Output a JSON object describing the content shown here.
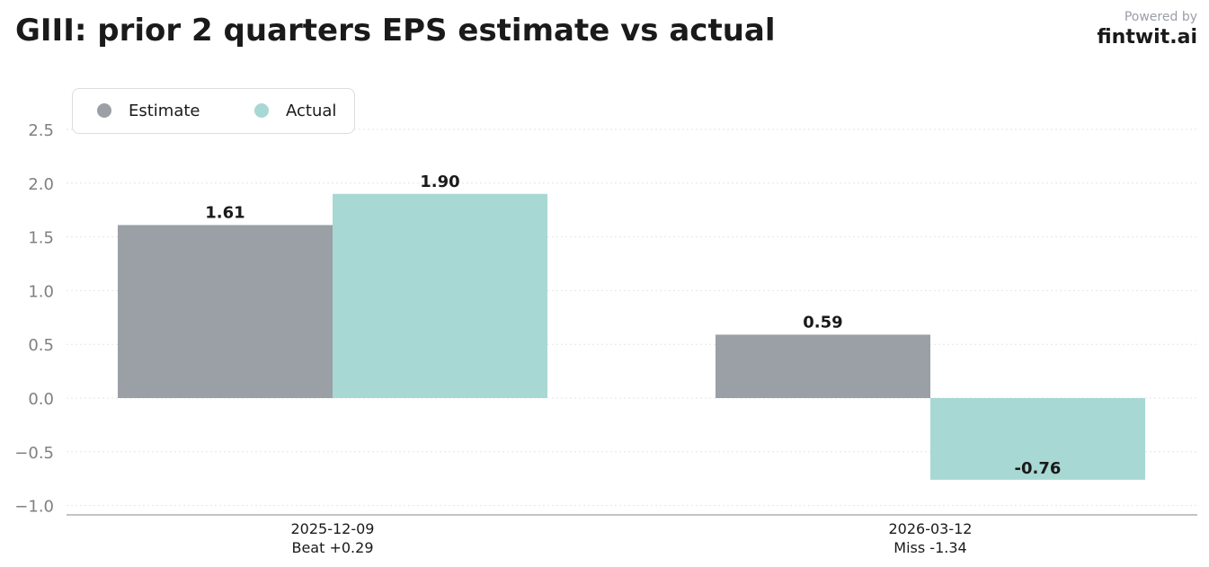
{
  "header": {
    "title": "GIII: prior 2 quarters EPS estimate vs actual",
    "powered_by": "Powered by",
    "brand": "fintwit.ai"
  },
  "colors": {
    "estimate": "#9b9fa6",
    "actual": "#a8d8d4",
    "grid": "#e6e6e6",
    "axis": "#b0b0b0"
  },
  "chart_data": {
    "type": "bar",
    "categories": [
      "2025-12-09",
      "2026-03-12"
    ],
    "category_notes": [
      "Beat +0.29",
      "Miss -1.34"
    ],
    "series": [
      {
        "name": "Estimate",
        "values": [
          1.61,
          0.59
        ]
      },
      {
        "name": "Actual",
        "values": [
          1.9,
          -0.76
        ]
      }
    ],
    "data_labels": [
      [
        "1.61",
        "0.59"
      ],
      [
        "1.90",
        "-0.76"
      ]
    ],
    "yticks": [
      -1.0,
      -0.5,
      0.0,
      0.5,
      1.0,
      1.5,
      2.0,
      2.5
    ],
    "ytick_labels": [
      "−1.0",
      "−0.5",
      "0.0",
      "0.5",
      "1.0",
      "1.5",
      "2.0",
      "2.5"
    ],
    "ylim": [
      -1.08,
      2.95
    ],
    "grid": true,
    "legend": "top-left",
    "title": "GIII: prior 2 quarters EPS estimate vs actual",
    "xlabel": "",
    "ylabel": ""
  }
}
